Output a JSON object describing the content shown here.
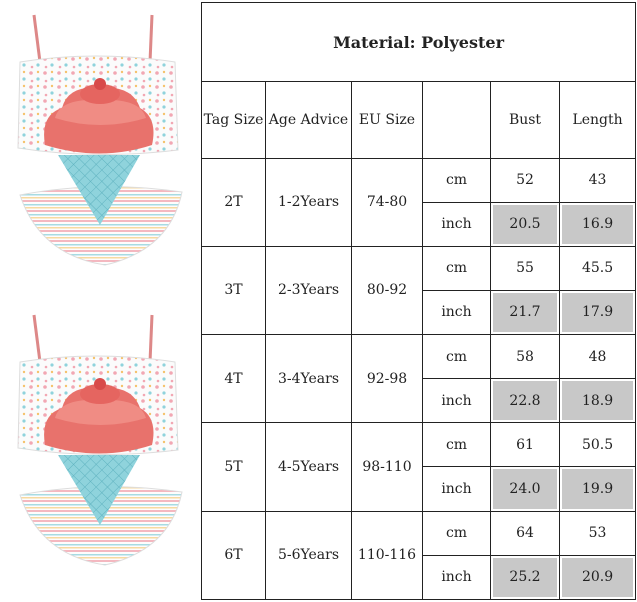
{
  "title": "Material: Polyester",
  "headers": [
    "Tag Size",
    "Age Advice",
    "EU Size",
    "",
    "Bust",
    "Length"
  ],
  "rows": [
    {
      "tag": "2T",
      "age": "1-2Years",
      "eu": "74-80",
      "cm_label": "cm",
      "cm_bust": "52",
      "cm_length": "43",
      "inch_label": "inch",
      "inch_bust": "20.5",
      "inch_length": "16.9"
    },
    {
      "tag": "3T",
      "age": "2-3Years",
      "eu": "80-92",
      "cm_label": "cm",
      "cm_bust": "55",
      "cm_length": "45.5",
      "inch_label": "inch",
      "inch_bust": "21.7",
      "inch_length": "17.9"
    },
    {
      "tag": "4T",
      "age": "3-4Years",
      "eu": "92-98",
      "cm_label": "cm",
      "cm_bust": "58",
      "cm_length": "48",
      "inch_label": "inch",
      "inch_bust": "22.8",
      "inch_length": "18.9"
    },
    {
      "tag": "5T",
      "age": "4-5Years",
      "eu": "98-110",
      "cm_label": "cm",
      "cm_bust": "61",
      "cm_length": "50.5",
      "inch_label": "inch",
      "inch_bust": "24.0",
      "inch_length": "19.9"
    },
    {
      "tag": "6T",
      "age": "5-6Years",
      "eu": "110-116",
      "cm_label": "cm",
      "cm_bust": "64",
      "cm_length": "53",
      "inch_label": "inch",
      "inch_bust": "25.2",
      "inch_length": "20.9"
    }
  ],
  "colors": {
    "shade": "#c8c8c8",
    "cone": "#8fd3dc",
    "scoop": "#e8726c",
    "stripe": "#f4b8c0"
  }
}
